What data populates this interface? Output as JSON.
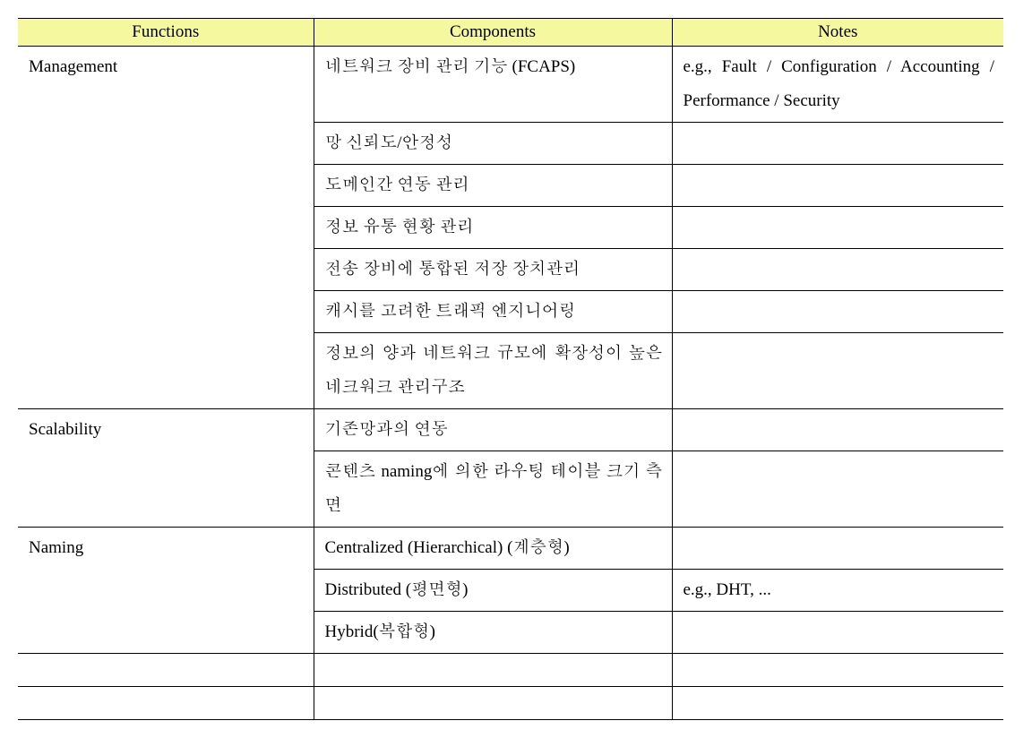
{
  "header_bg": "#f6f8a0",
  "columns": {
    "functions": "Functions",
    "components": "Components",
    "notes": "Notes"
  },
  "groups": [
    {
      "function": "Management",
      "rows": [
        {
          "component": "네트워크 장비 관리 기능 (FCAPS)",
          "note": "e.g., Fault / Configuration / Accounting / Performance / Security"
        },
        {
          "component": "망 신뢰도/안정성",
          "note": ""
        },
        {
          "component": "도메인간 연동 관리",
          "note": ""
        },
        {
          "component": "정보 유통 현황 관리",
          "note": ""
        },
        {
          "component": "전송 장비에 통합된 저장 장치관리",
          "note": ""
        },
        {
          "component": "캐시를 고려한 트래픽 엔지니어링",
          "note": ""
        },
        {
          "component": "정보의 양과 네트워크 규모에 확장성이 높은 네크워크 관리구조",
          "note": ""
        }
      ]
    },
    {
      "function": "Scalability",
      "rows": [
        {
          "component": "기존망과의 연동",
          "note": ""
        },
        {
          "component": "콘텐츠 naming에 의한 라우팅 테이블 크기 측면",
          "note": ""
        }
      ]
    },
    {
      "function": "Naming",
      "rows": [
        {
          "component": "Centralized (Hierarchical) (계층형)",
          "note": ""
        },
        {
          "component": "Distributed (평면형)",
          "note": "e.g., DHT, ..."
        },
        {
          "component": "Hybrid(복합형)",
          "note": ""
        }
      ]
    }
  ],
  "trailing_empty_rows": 2
}
